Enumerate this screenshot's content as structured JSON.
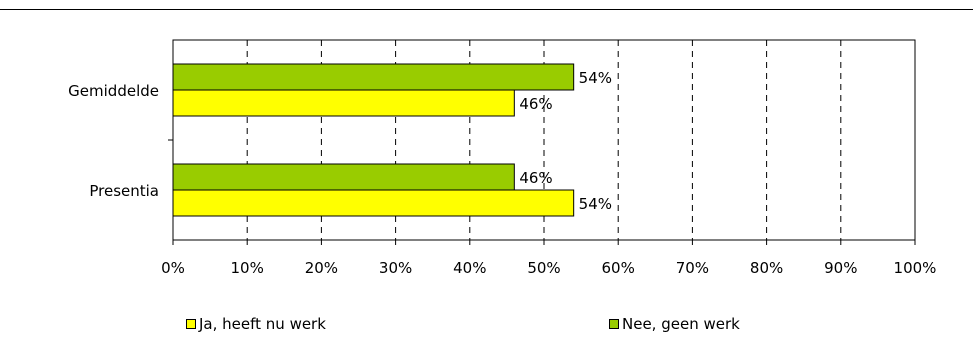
{
  "chart_data": {
    "type": "bar",
    "orientation": "horizontal",
    "categories": [
      "Gemiddelde",
      "Presentia"
    ],
    "series": [
      {
        "name": "Nee, geen werk",
        "color": "#99cc00",
        "values": [
          54,
          46
        ],
        "labels": [
          "54%",
          "46%"
        ]
      },
      {
        "name": "Ja, heeft nu werk",
        "color": "#ffff00",
        "values": [
          46,
          54
        ],
        "labels": [
          "46%",
          "54%"
        ]
      }
    ],
    "xlim": [
      0,
      100
    ],
    "xticks": [
      "0%",
      "10%",
      "20%",
      "30%",
      "40%",
      "50%",
      "60%",
      "70%",
      "80%",
      "90%",
      "100%"
    ],
    "grid": "vertical dashed",
    "legend": {
      "placement": "bottom",
      "items": [
        {
          "label": "Ja, heeft nu werk",
          "color": "#ffff00"
        },
        {
          "label": "Nee, geen werk",
          "color": "#99cc00"
        }
      ]
    }
  }
}
